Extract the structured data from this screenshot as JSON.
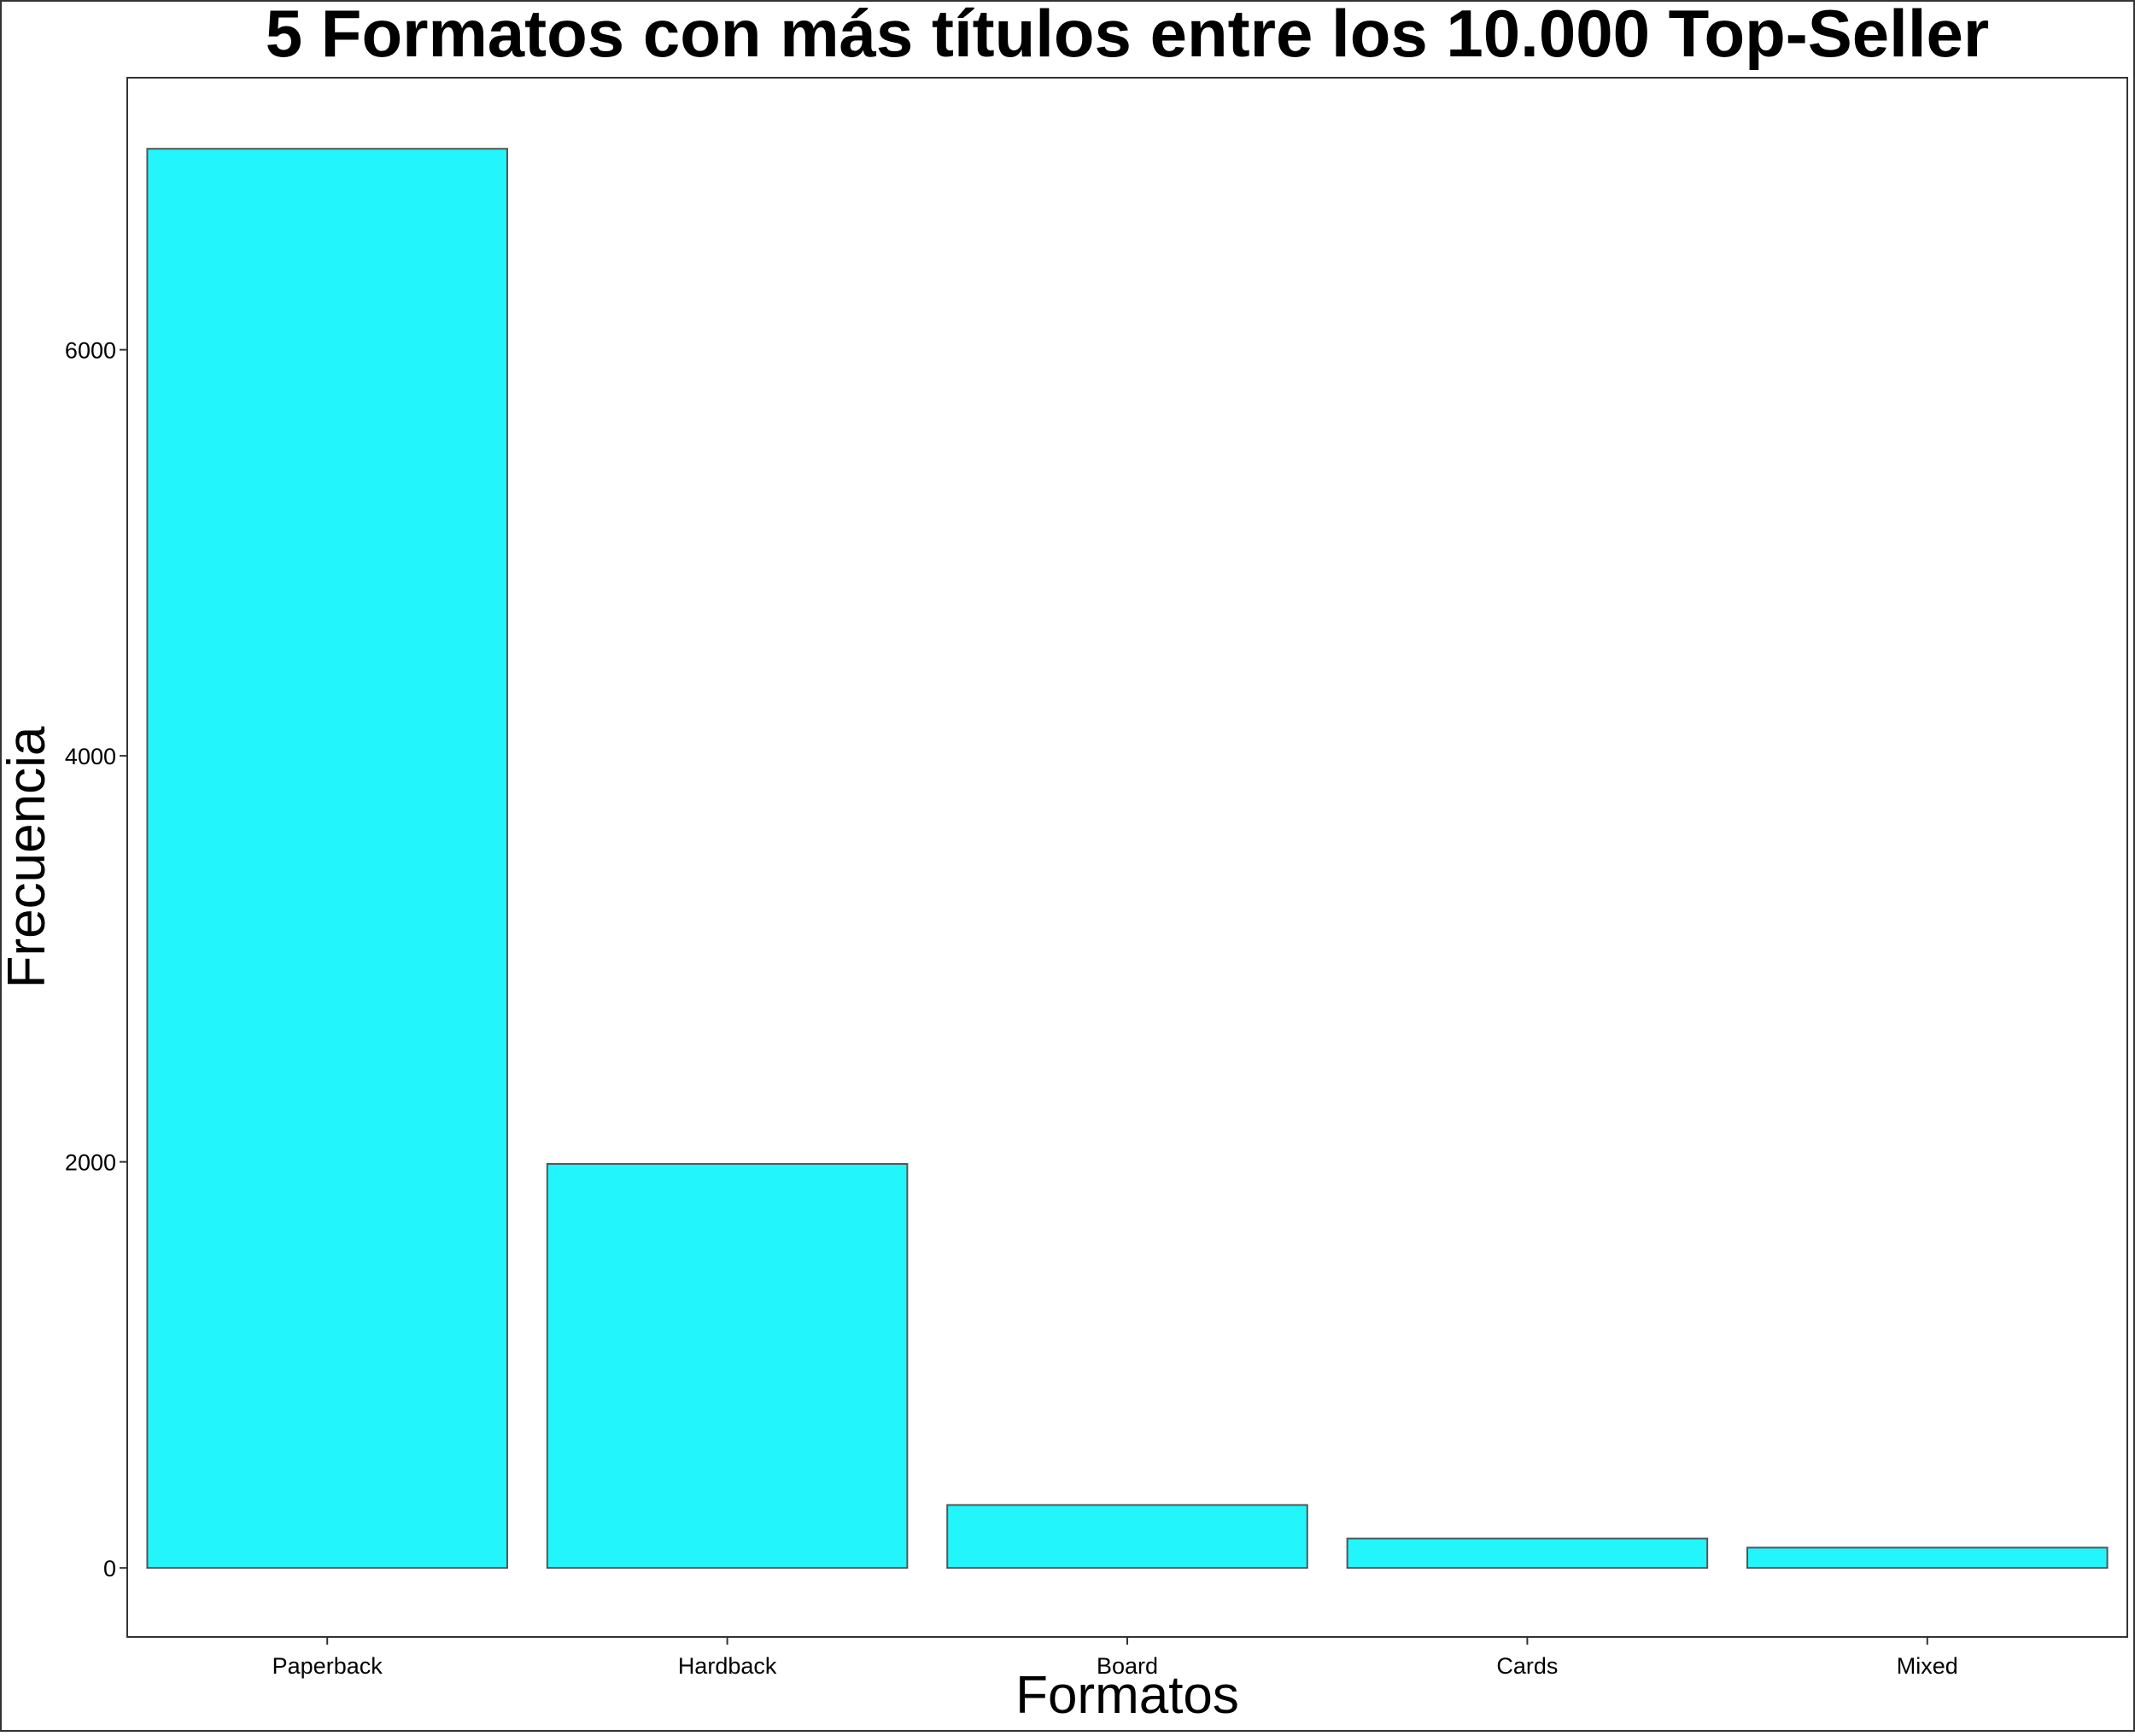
{
  "chart_data": {
    "type": "bar",
    "title": "5 Formatos con más títulos entre los 10.000 Top-Seller",
    "xlabel": "Formatos",
    "ylabel": "Frecuencia",
    "categories": [
      "Paperback",
      "Hardback",
      "Board",
      "Cards",
      "Mixed"
    ],
    "values": [
      6990,
      1990,
      310,
      145,
      100
    ],
    "ylim": [
      -340,
      7340
    ],
    "yticks": [
      0,
      2000,
      4000,
      6000
    ],
    "ytick_labels": [
      "0",
      "2000",
      "4000",
      "6000"
    ],
    "bar_color": "#22f5fc",
    "bar_edge_color": "#555555",
    "grid": false,
    "legend": "none"
  }
}
